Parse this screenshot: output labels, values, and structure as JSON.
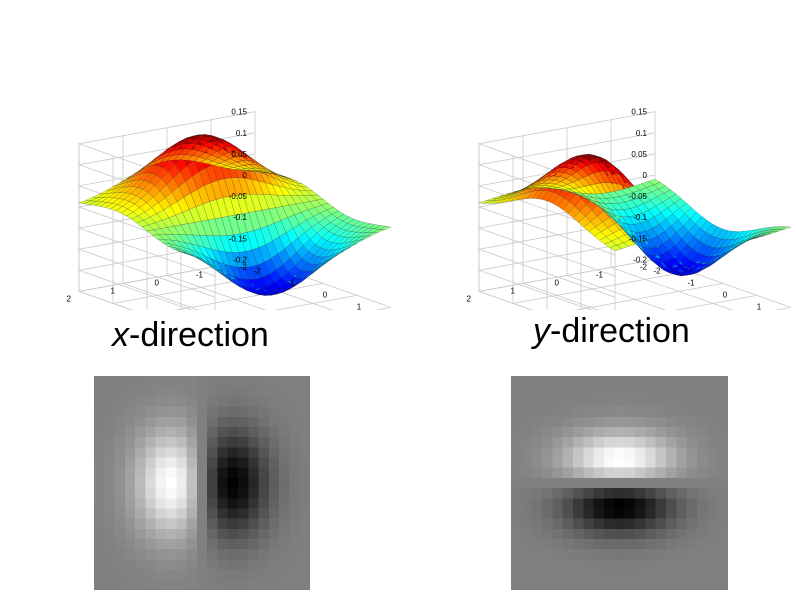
{
  "captions": {
    "x": {
      "var": "x",
      "rest": "-direction"
    },
    "y": {
      "var": "y",
      "rest": "-direction"
    }
  },
  "surface_axes": {
    "z_ticks": [
      "0.15",
      "0.1",
      "0.05",
      "0",
      "-0.05",
      "-0.1",
      "-0.15",
      "-0.2"
    ],
    "x_ticks": [
      "-2",
      "-1",
      "0",
      "1",
      "2"
    ],
    "y_ticks": [
      "2",
      "1",
      "0",
      "-1",
      "-2"
    ]
  },
  "plots": [
    {
      "name": "x-derivative-of-gaussian-surface",
      "direction": "x",
      "peak": 0.16,
      "trough": -0.19
    },
    {
      "name": "y-derivative-of-gaussian-surface",
      "direction": "y",
      "peak": 0.16,
      "trough": -0.19
    }
  ],
  "colormap": "jet",
  "kernels": [
    {
      "name": "x-direction-kernel-image",
      "direction": "x",
      "grid": 21
    },
    {
      "name": "y-direction-kernel-image",
      "direction": "y",
      "grid": 21
    }
  ]
}
